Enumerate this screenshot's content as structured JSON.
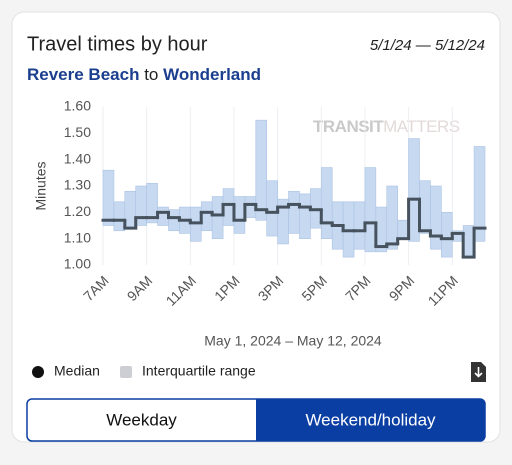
{
  "header": {
    "title": "Travel times by hour",
    "date_range": "5/1/24 — 5/12/24",
    "route_from": "Revere Beach",
    "route_connector": "to",
    "route_to": "Wonderland"
  },
  "chart_data": {
    "type": "line",
    "xlabel": "May 1, 2024 – May 12, 2024",
    "ylabel": "Minutes",
    "watermark": [
      "TRANSIT",
      "MATTERS"
    ],
    "x": [
      7,
      7.5,
      8,
      8.5,
      9,
      9.5,
      10,
      10.5,
      11,
      11.5,
      12,
      12.5,
      13,
      13.5,
      14,
      14.5,
      15,
      15.5,
      16,
      16.5,
      17,
      17.5,
      18,
      18.5,
      19,
      19.5,
      20,
      20.5,
      21,
      21.5,
      22,
      22.5,
      23,
      23.5,
      24
    ],
    "series": [
      {
        "name": "Median",
        "color": "#46525e",
        "values": [
          1.17,
          1.17,
          1.14,
          1.18,
          1.18,
          1.2,
          1.18,
          1.17,
          1.16,
          1.2,
          1.19,
          1.23,
          1.17,
          1.23,
          1.21,
          1.2,
          1.22,
          1.23,
          1.22,
          1.21,
          1.16,
          1.15,
          1.13,
          1.13,
          1.16,
          1.07,
          1.08,
          1.1,
          1.25,
          1.13,
          1.11,
          1.1,
          1.12,
          1.03,
          1.14
        ]
      }
    ],
    "band": {
      "name": "Interquartile range",
      "color": "#c7d9f0",
      "low": [
        1.15,
        1.13,
        1.14,
        1.15,
        1.16,
        1.15,
        1.13,
        1.12,
        1.09,
        1.13,
        1.1,
        1.15,
        1.12,
        1.18,
        1.17,
        1.11,
        1.08,
        1.12,
        1.1,
        1.14,
        1.1,
        1.06,
        1.03,
        1.06,
        1.05,
        1.05,
        1.06,
        1.1,
        1.09,
        1.12,
        1.06,
        1.03,
        1.09,
        1.03,
        1.09
      ],
      "high": [
        1.36,
        1.24,
        1.28,
        1.3,
        1.31,
        1.22,
        1.21,
        1.22,
        1.22,
        1.24,
        1.26,
        1.29,
        1.26,
        1.26,
        1.55,
        1.32,
        1.25,
        1.28,
        1.27,
        1.29,
        1.37,
        1.24,
        1.24,
        1.24,
        1.37,
        1.22,
        1.3,
        1.17,
        1.48,
        1.32,
        1.3,
        1.2,
        1.13,
        1.15,
        1.45
      ]
    },
    "xlim": [
      7,
      24.5
    ],
    "xticks": [
      {
        "value": 7,
        "label": "7AM"
      },
      {
        "value": 9,
        "label": "9AM"
      },
      {
        "value": 11,
        "label": "11AM"
      },
      {
        "value": 13,
        "label": "1PM"
      },
      {
        "value": 15,
        "label": "3PM"
      },
      {
        "value": 17,
        "label": "5PM"
      },
      {
        "value": 19,
        "label": "7PM"
      },
      {
        "value": 21,
        "label": "9PM"
      },
      {
        "value": 23,
        "label": "11PM"
      }
    ],
    "ylim": [
      1.0,
      1.6
    ],
    "yticks": [
      {
        "value": 1.0,
        "label": "1.00"
      },
      {
        "value": 1.1,
        "label": "1.10"
      },
      {
        "value": 1.2,
        "label": "1.20"
      },
      {
        "value": 1.3,
        "label": "1.30"
      },
      {
        "value": 1.4,
        "label": "1.40"
      },
      {
        "value": 1.5,
        "label": "1.50"
      },
      {
        "value": 1.6,
        "label": "1.60"
      }
    ],
    "grid": true
  },
  "toggle": {
    "options": [
      "Weekday",
      "Weekend/holiday"
    ],
    "selected": 1
  }
}
